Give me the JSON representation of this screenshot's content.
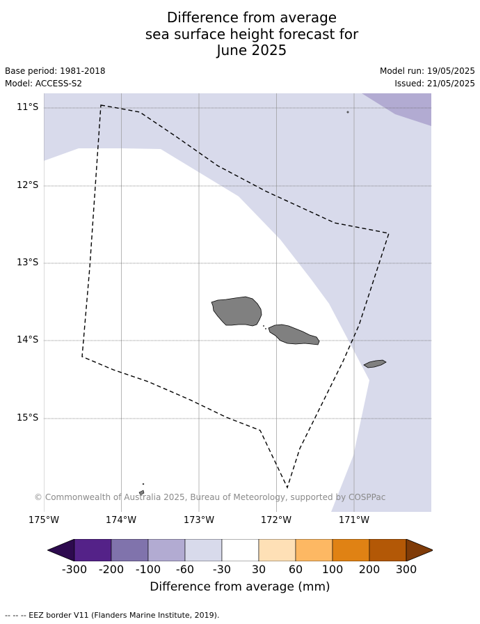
{
  "title": {
    "line1": "Difference from average",
    "line2": "sea surface height forecast for",
    "line3": "June 2025"
  },
  "meta": {
    "base_period": "Base period: 1981-2018",
    "model": "Model: ACCESS-S2",
    "model_run": "Model run: 19/05/2025",
    "issued": "Issued: 21/05/2025"
  },
  "map": {
    "lat_labels": [
      "11°S",
      "12°S",
      "13°S",
      "14°S",
      "15°S"
    ],
    "lon_labels": [
      "175°W",
      "174°W",
      "173°W",
      "172°W",
      "171°W"
    ],
    "credit": "© Commonwealth of Australia 2025, Bureau of Meteorology, supported by COSPPac",
    "land_color": "#808080",
    "eez_line": "dashed black"
  },
  "colorbar": {
    "tick_labels": [
      "-300",
      "-200",
      "-100",
      "-60",
      "-30",
      "30",
      "60",
      "100",
      "200",
      "300"
    ],
    "colors": [
      "#2d0a4e",
      "#542288",
      "#8073ac",
      "#b2abd2",
      "#d8daeb",
      "#ffffff",
      "#fee0b6",
      "#fdb863",
      "#e08214",
      "#b35806",
      "#7f3b08"
    ],
    "title": "Difference from average (mm)"
  },
  "footer": {
    "legend": "-- -- -- EEZ border V11 (Flanders Marine Institute, 2019)."
  }
}
